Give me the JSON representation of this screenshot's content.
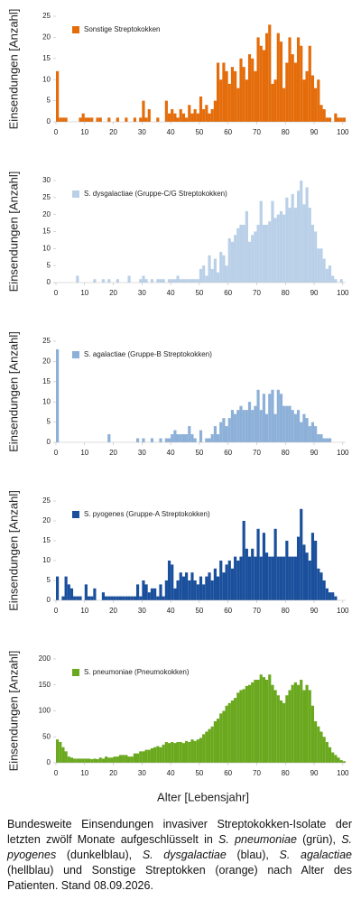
{
  "xlabel": "Alter [Lebensjahr]",
  "caption": [
    {
      "text": "Bundesweite Einsendungen invasiver Streptokokken-Isolate der letzten zwölf Monate aufgeschlüsselt in ",
      "italic": false
    },
    {
      "text": "S. pneumoniae",
      "italic": true
    },
    {
      "text": " (grün), ",
      "italic": false
    },
    {
      "text": "S. pyogenes",
      "italic": true
    },
    {
      "text": " (dunkelblau), ",
      "italic": false
    },
    {
      "text": "S. dysgalactiae",
      "italic": true
    },
    {
      "text": " (blau), ",
      "italic": false
    },
    {
      "text": "S. agalactiae",
      "italic": true
    },
    {
      "text": " (hellblau) und Sonstige Streptokken (orange) nach Alter des Patienten. Stand 08.09.2026.",
      "italic": false
    }
  ],
  "chart_data": [
    {
      "type": "histogram",
      "ylabel": "Einsendungen [Anzahl]",
      "bins": [
        0,
        1,
        2,
        3,
        4,
        5,
        6,
        7,
        8,
        9,
        10,
        11,
        12,
        13,
        14,
        15,
        16,
        17,
        18,
        19,
        20,
        21,
        22,
        23,
        24,
        25,
        26,
        27,
        28,
        29,
        30,
        31,
        32,
        33,
        34,
        35,
        36,
        37,
        38,
        39,
        40,
        41,
        42,
        43,
        44,
        45,
        46,
        47,
        48,
        49,
        50,
        51,
        52,
        53,
        54,
        55,
        56,
        57,
        58,
        59,
        60,
        61,
        62,
        63,
        64,
        65,
        66,
        67,
        68,
        69,
        70,
        71,
        72,
        73,
        74,
        75,
        76,
        77,
        78,
        79,
        80,
        81,
        82,
        83,
        84,
        85,
        86,
        87,
        88,
        89,
        90,
        91,
        92,
        93,
        94,
        95,
        96,
        97,
        98,
        99,
        100,
        101
      ],
      "series": [
        {
          "name": "Sonstige Streptokokken",
          "color": "#e46c0a",
          "values": [
            12,
            1,
            1,
            1,
            0,
            0,
            0,
            0,
            1,
            2,
            1,
            1,
            1,
            0,
            1,
            1,
            0,
            0,
            1,
            0,
            0,
            1,
            0,
            0,
            1,
            0,
            0,
            1,
            0,
            1,
            5,
            1,
            3,
            0,
            0,
            1,
            0,
            0,
            5,
            2,
            3,
            2,
            1,
            3,
            2,
            1,
            4,
            2,
            3,
            2,
            6,
            3,
            4,
            2,
            3,
            5,
            14,
            10,
            14,
            12,
            9,
            13,
            12,
            8,
            15,
            13,
            10,
            16,
            15,
            12,
            20,
            18,
            17,
            21,
            23,
            9,
            10,
            21,
            19,
            8,
            14,
            20,
            16,
            14,
            20,
            18,
            10,
            12,
            18,
            11,
            8,
            10,
            4,
            3,
            1,
            1,
            0,
            2,
            1,
            1,
            1
          ]
        }
      ],
      "xlim": [
        0,
        101
      ],
      "xticks": [
        0,
        10,
        20,
        30,
        40,
        50,
        60,
        70,
        80,
        90,
        100
      ],
      "ylim": [
        0,
        25
      ],
      "yticks": [
        0,
        5,
        10,
        15,
        20,
        25
      ]
    },
    {
      "type": "histogram",
      "ylabel": "Einsendungen [Anzahl]",
      "bins": [
        0,
        1,
        2,
        3,
        4,
        5,
        6,
        7,
        8,
        9,
        10,
        11,
        12,
        13,
        14,
        15,
        16,
        17,
        18,
        19,
        20,
        21,
        22,
        23,
        24,
        25,
        26,
        27,
        28,
        29,
        30,
        31,
        32,
        33,
        34,
        35,
        36,
        37,
        38,
        39,
        40,
        41,
        42,
        43,
        44,
        45,
        46,
        47,
        48,
        49,
        50,
        51,
        52,
        53,
        54,
        55,
        56,
        57,
        58,
        59,
        60,
        61,
        62,
        63,
        64,
        65,
        66,
        67,
        68,
        69,
        70,
        71,
        72,
        73,
        74,
        75,
        76,
        77,
        78,
        79,
        80,
        81,
        82,
        83,
        84,
        85,
        86,
        87,
        88,
        89,
        90,
        91,
        92,
        93,
        94,
        95,
        96,
        97,
        98,
        99,
        100,
        101
      ],
      "series": [
        {
          "name": "S. dysgalactiae (Gruppe-C/G Streptokokken)",
          "color": "#b9d0e8",
          "values": [
            0,
            0,
            0,
            0,
            0,
            0,
            0,
            2,
            0,
            0,
            0,
            0,
            0,
            1,
            0,
            0,
            1,
            0,
            1,
            0,
            0,
            1,
            0,
            0,
            0,
            2,
            0,
            0,
            0,
            1,
            2,
            1,
            0,
            1,
            0,
            1,
            1,
            1,
            0,
            1,
            1,
            1,
            2,
            1,
            1,
            1,
            1,
            1,
            1,
            1,
            4,
            5,
            2,
            8,
            4,
            7,
            3,
            9,
            8,
            5,
            13,
            12,
            14,
            16,
            17,
            17,
            21,
            12,
            14,
            15,
            17,
            24,
            17,
            17,
            18,
            24,
            19,
            20,
            21,
            20,
            25,
            22,
            26,
            22,
            27,
            30,
            23,
            28,
            22,
            17,
            15,
            10,
            10,
            7,
            4,
            5,
            2,
            1,
            0,
            1,
            0
          ]
        }
      ],
      "xlim": [
        0,
        101
      ],
      "xticks": [
        0,
        10,
        20,
        30,
        40,
        50,
        60,
        70,
        80,
        90,
        100
      ],
      "ylim": [
        0,
        30
      ],
      "yticks": [
        0,
        5,
        10,
        15,
        20,
        25,
        30
      ]
    },
    {
      "type": "histogram",
      "ylabel": "Einsendungen [Anzahl]",
      "bins": [
        0,
        1,
        2,
        3,
        4,
        5,
        6,
        7,
        8,
        9,
        10,
        11,
        12,
        13,
        14,
        15,
        16,
        17,
        18,
        19,
        20,
        21,
        22,
        23,
        24,
        25,
        26,
        27,
        28,
        29,
        30,
        31,
        32,
        33,
        34,
        35,
        36,
        37,
        38,
        39,
        40,
        41,
        42,
        43,
        44,
        45,
        46,
        47,
        48,
        49,
        50,
        51,
        52,
        53,
        54,
        55,
        56,
        57,
        58,
        59,
        60,
        61,
        62,
        63,
        64,
        65,
        66,
        67,
        68,
        69,
        70,
        71,
        72,
        73,
        74,
        75,
        76,
        77,
        78,
        79,
        80,
        81,
        82,
        83,
        84,
        85,
        86,
        87,
        88,
        89,
        90,
        91,
        92,
        93,
        94,
        95,
        96,
        97,
        98,
        99,
        100,
        101
      ],
      "series": [
        {
          "name": "S. agalactiae (Gruppe-B Streptokokken)",
          "color": "#8cb0d8",
          "values": [
            23,
            0,
            0,
            0,
            0,
            0,
            0,
            0,
            0,
            0,
            0,
            0,
            0,
            0,
            0,
            0,
            0,
            0,
            2,
            0,
            0,
            0,
            0,
            0,
            0,
            0,
            0,
            0,
            1,
            0,
            1,
            0,
            0,
            1,
            0,
            0,
            1,
            0,
            1,
            1,
            2,
            3,
            2,
            2,
            2,
            2,
            4,
            2,
            1,
            0,
            3,
            0,
            1,
            1,
            2,
            4,
            2,
            5,
            6,
            4,
            6,
            8,
            7,
            8,
            9,
            8,
            8,
            10,
            8,
            9,
            13,
            8,
            12,
            7,
            12,
            13,
            7,
            13,
            12,
            9,
            9,
            9,
            8,
            7,
            8,
            5,
            7,
            6,
            4,
            5,
            4,
            2,
            2,
            1,
            1,
            1,
            0,
            0,
            0,
            0,
            0
          ]
        }
      ],
      "xlim": [
        0,
        101
      ],
      "xticks": [
        0,
        10,
        20,
        30,
        40,
        50,
        60,
        70,
        80,
        90,
        100
      ],
      "ylim": [
        0,
        25
      ],
      "yticks": [
        0,
        5,
        10,
        15,
        20,
        25
      ]
    },
    {
      "type": "histogram",
      "ylabel": "Einsendungen [Anzahl]",
      "bins": [
        0,
        1,
        2,
        3,
        4,
        5,
        6,
        7,
        8,
        9,
        10,
        11,
        12,
        13,
        14,
        15,
        16,
        17,
        18,
        19,
        20,
        21,
        22,
        23,
        24,
        25,
        26,
        27,
        28,
        29,
        30,
        31,
        32,
        33,
        34,
        35,
        36,
        37,
        38,
        39,
        40,
        41,
        42,
        43,
        44,
        45,
        46,
        47,
        48,
        49,
        50,
        51,
        52,
        53,
        54,
        55,
        56,
        57,
        58,
        59,
        60,
        61,
        62,
        63,
        64,
        65,
        66,
        67,
        68,
        69,
        70,
        71,
        72,
        73,
        74,
        75,
        76,
        77,
        78,
        79,
        80,
        81,
        82,
        83,
        84,
        85,
        86,
        87,
        88,
        89,
        90,
        91,
        92,
        93,
        94,
        95,
        96,
        97,
        98,
        99,
        100,
        101
      ],
      "series": [
        {
          "name": "S. pyogenes (Gruppe-A Streptokokken)",
          "color": "#1a4f9c",
          "values": [
            6,
            0,
            1,
            6,
            4,
            3,
            1,
            1,
            1,
            0,
            4,
            1,
            1,
            3,
            0,
            0,
            2,
            1,
            1,
            1,
            1,
            1,
            1,
            1,
            1,
            1,
            1,
            1,
            4,
            1,
            5,
            4,
            2,
            3,
            3,
            1,
            4,
            1,
            5,
            10,
            9,
            3,
            5,
            7,
            6,
            7,
            5,
            7,
            5,
            4,
            6,
            4,
            6,
            7,
            5,
            8,
            6,
            10,
            7,
            9,
            10,
            8,
            11,
            10,
            11,
            20,
            13,
            11,
            13,
            11,
            18,
            11,
            17,
            12,
            11,
            11,
            18,
            11,
            11,
            11,
            15,
            11,
            11,
            11,
            16,
            23,
            14,
            12,
            10,
            17,
            15,
            8,
            7,
            5,
            3,
            2,
            2,
            1,
            0,
            0,
            0
          ]
        }
      ],
      "xlim": [
        0,
        101
      ],
      "xticks": [
        0,
        10,
        20,
        30,
        40,
        50,
        60,
        70,
        80,
        90,
        100
      ],
      "ylim": [
        0,
        25
      ],
      "yticks": [
        0,
        5,
        10,
        15,
        20,
        25
      ]
    },
    {
      "type": "histogram",
      "ylabel": "Einsendungen [Anzahl]",
      "bins": [
        0,
        1,
        2,
        3,
        4,
        5,
        6,
        7,
        8,
        9,
        10,
        11,
        12,
        13,
        14,
        15,
        16,
        17,
        18,
        19,
        20,
        21,
        22,
        23,
        24,
        25,
        26,
        27,
        28,
        29,
        30,
        31,
        32,
        33,
        34,
        35,
        36,
        37,
        38,
        39,
        40,
        41,
        42,
        43,
        44,
        45,
        46,
        47,
        48,
        49,
        50,
        51,
        52,
        53,
        54,
        55,
        56,
        57,
        58,
        59,
        60,
        61,
        62,
        63,
        64,
        65,
        66,
        67,
        68,
        69,
        70,
        71,
        72,
        73,
        74,
        75,
        76,
        77,
        78,
        79,
        80,
        81,
        82,
        83,
        84,
        85,
        86,
        87,
        88,
        89,
        90,
        91,
        92,
        93,
        94,
        95,
        96,
        97,
        98,
        99,
        100,
        101
      ],
      "series": [
        {
          "name": "S. pneumoniae (Pneumokokken)",
          "color": "#6aa81e",
          "values": [
            45,
            40,
            30,
            22,
            12,
            10,
            8,
            8,
            8,
            8,
            8,
            8,
            7,
            8,
            7,
            10,
            8,
            12,
            10,
            10,
            12,
            12,
            15,
            15,
            15,
            12,
            12,
            18,
            18,
            22,
            22,
            25,
            25,
            28,
            30,
            32,
            30,
            35,
            40,
            38,
            40,
            38,
            40,
            40,
            38,
            42,
            40,
            45,
            42,
            45,
            48,
            55,
            60,
            65,
            70,
            80,
            85,
            95,
            100,
            110,
            115,
            120,
            125,
            135,
            140,
            142,
            148,
            150,
            155,
            160,
            160,
            170,
            165,
            160,
            170,
            150,
            140,
            130,
            120,
            115,
            130,
            140,
            150,
            155,
            150,
            160,
            140,
            150,
            140,
            110,
            80,
            70,
            60,
            50,
            40,
            30,
            20,
            15,
            10,
            5,
            3
          ]
        }
      ],
      "xlim": [
        0,
        101
      ],
      "xticks": [
        0,
        10,
        20,
        30,
        40,
        50,
        60,
        70,
        80,
        90,
        100
      ],
      "ylim": [
        0,
        200
      ],
      "yticks": [
        0,
        50,
        100,
        150,
        200
      ]
    }
  ]
}
